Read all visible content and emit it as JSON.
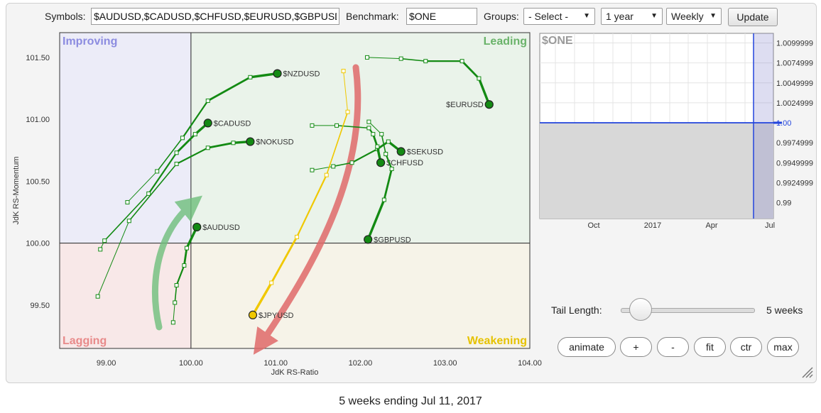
{
  "toolbar": {
    "symbols_label": "Symbols:",
    "symbols_value": "$AUDUSD,$CADUSD,$CHFUSD,$EURUSD,$GBPUSD,$JPYUSD,$NOKUSD,$NZDUSD,$SEKUSD",
    "benchmark_label": "Benchmark:",
    "benchmark_value": "$ONE",
    "groups_label": "Groups:",
    "groups_value": "- Select -",
    "period_value": "1 year",
    "frequency_value": "Weekly",
    "update_label": "Update"
  },
  "chart_data": [
    {
      "type": "scatter",
      "subtype": "relative-rotation-graph",
      "xlabel": "JdK RS-Ratio",
      "ylabel": "JdK RS-Momentum",
      "xlim": [
        98.45,
        104.0
      ],
      "ylim": [
        99.15,
        101.7
      ],
      "xticks": [
        "99.00",
        "100.00",
        "101.00",
        "102.00",
        "103.00",
        "104.00"
      ],
      "yticks": [
        "99.50",
        "100.00",
        "100.50",
        "101.00",
        "101.50"
      ],
      "quadrants": [
        {
          "name": "Improving",
          "color": "#8c8ce0",
          "fill": "#ececf8"
        },
        {
          "name": "Leading",
          "color": "#6ab36a",
          "fill": "#eaf3ea"
        },
        {
          "name": "Lagging",
          "color": "#e88a8a",
          "fill": "#f8e8e8"
        },
        {
          "name": "Weakening",
          "color": "#e6c200",
          "fill": "#f6f3e8"
        }
      ],
      "series": [
        {
          "name": "$NZDUSD",
          "color": "#138a13",
          "x": [
            99.25,
            99.6,
            99.9,
            100.2,
            100.7,
            101.02
          ],
          "y": [
            100.33,
            100.58,
            100.85,
            101.15,
            101.34,
            101.37
          ]
        },
        {
          "name": "$CADUSD",
          "color": "#138a13",
          "x": [
            98.93,
            98.98,
            99.5,
            99.83,
            100.05,
            100.2
          ],
          "y": [
            99.95,
            100.02,
            100.4,
            100.73,
            100.88,
            100.97
          ]
        },
        {
          "name": "$NOKUSD",
          "color": "#138a13",
          "x": [
            98.9,
            99.27,
            99.83,
            100.2,
            100.5,
            100.7
          ],
          "y": [
            99.57,
            100.18,
            100.64,
            100.77,
            100.81,
            100.82
          ]
        },
        {
          "name": "$AUDUSD",
          "color": "#138a13",
          "x": [
            99.79,
            99.81,
            99.83,
            99.92,
            99.95,
            100.07
          ],
          "y": [
            99.36,
            99.52,
            99.66,
            99.82,
            99.96,
            100.13
          ]
        },
        {
          "name": "$EURUSD",
          "color": "#138a13",
          "x": [
            102.08,
            102.48,
            102.77,
            103.2,
            103.4,
            103.52
          ],
          "y": [
            101.5,
            101.49,
            101.47,
            101.47,
            101.33,
            101.12
          ]
        },
        {
          "name": "$SEKUSD",
          "color": "#138a13",
          "x": [
            101.43,
            101.68,
            101.9,
            102.2,
            102.33,
            102.48
          ],
          "y": [
            100.59,
            100.62,
            100.65,
            100.76,
            100.82,
            100.74
          ]
        },
        {
          "name": "$CHFUSD",
          "color": "#138a13",
          "x": [
            101.43,
            101.72,
            102.1,
            102.15,
            102.2,
            102.24
          ],
          "y": [
            100.95,
            100.95,
            100.93,
            100.88,
            100.78,
            100.65
          ]
        },
        {
          "name": "$GBPUSD",
          "color": "#138a13",
          "x": [
            102.1,
            102.25,
            102.3,
            102.37,
            102.28,
            102.09
          ],
          "y": [
            100.98,
            100.88,
            100.72,
            100.6,
            100.35,
            100.03
          ]
        },
        {
          "name": "$JPYUSD",
          "color": "#f0c800",
          "x": [
            101.8,
            101.85,
            101.6,
            101.25,
            100.95,
            100.73
          ],
          "y": [
            101.39,
            101.06,
            100.55,
            100.05,
            99.68,
            99.42
          ]
        }
      ]
    },
    {
      "type": "line",
      "title": "$ONE",
      "xticks": [
        "Oct",
        "2017",
        "Apr",
        "Jul"
      ],
      "yticks": [
        "1.0099999",
        "1.0074999",
        "1.0049999",
        "1.0024999",
        "1.00",
        "0.9974999",
        "0.9949999",
        "0.9924999",
        "0.99"
      ],
      "ylim": [
        0.988,
        1.0112
      ],
      "series": [
        {
          "name": "$ONE",
          "color": "#2244dd",
          "values": [
            1.0,
            1.0
          ]
        }
      ],
      "highlight_label": "1.00"
    }
  ],
  "controls": {
    "tail_length_label": "Tail Length:",
    "tail_length_value": "5 weeks",
    "tail_fraction": 0.15,
    "buttons": [
      "animate",
      "+",
      "-",
      "fit",
      "ctr",
      "max"
    ]
  },
  "caption": "5 weeks ending Jul 11, 2017"
}
